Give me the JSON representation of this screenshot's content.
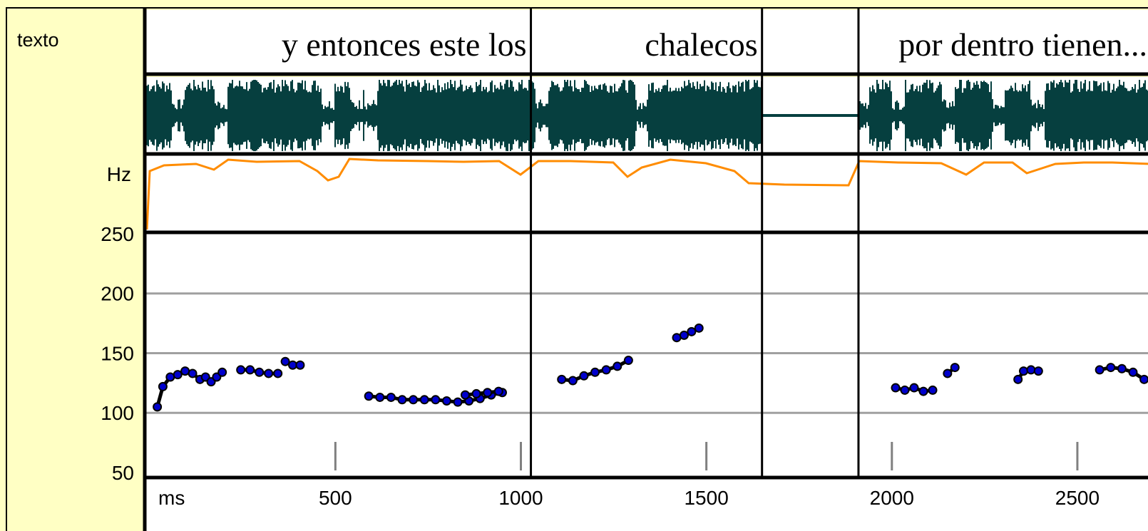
{
  "chart_data": {
    "type": "scatter",
    "title": "",
    "tier_label": "texto",
    "pitch_label": "Hz",
    "xlabel": "ms",
    "xlim": [
      -10,
      2700
    ],
    "ylim": [
      47,
      250
    ],
    "x_ticks": [
      500,
      1000,
      1500,
      2000,
      2500
    ],
    "y_ticks": [
      50,
      100,
      150,
      200,
      250
    ],
    "grid_y": [
      100,
      150,
      200
    ],
    "minor_x_ticks": [
      500,
      1000,
      1500,
      2000,
      2500
    ],
    "segment_boundaries_ms": [
      1027,
      1650,
      1910
    ],
    "words": [
      {
        "text": "y entonces este los",
        "start": -10,
        "end": 1027
      },
      {
        "text": "chalecos",
        "start": 1027,
        "end": 1650
      },
      {
        "text": "por dentro tienen...",
        "start": 1910,
        "end": 2700
      }
    ],
    "colors": {
      "background": "#ffffc4",
      "waveform": "#063f3f",
      "pitch_contour": "#ff8c00",
      "points": "#0000cc"
    },
    "series": [
      {
        "x": [
          20,
          35,
          55,
          75,
          95,
          115,
          135,
          150,
          165,
          180,
          195
        ],
        "y": [
          105,
          122,
          130,
          132,
          135,
          133,
          128,
          130,
          126,
          130,
          134
        ]
      },
      {
        "x": [
          245,
          270,
          295,
          320,
          345
        ],
        "y": [
          136,
          136,
          134,
          133,
          133
        ]
      },
      {
        "x": [
          365,
          385,
          405
        ],
        "y": [
          143,
          140,
          140
        ]
      },
      {
        "x": [
          590,
          620,
          650,
          680,
          710,
          740,
          770,
          800,
          830,
          860,
          890,
          920,
          950
        ],
        "y": [
          114,
          113,
          113,
          111,
          111,
          111,
          111,
          110,
          109,
          110,
          112,
          115,
          117
        ]
      },
      {
        "x": [
          850,
          880,
          910,
          940
        ],
        "y": [
          115,
          116,
          117,
          118
        ]
      },
      {
        "x": [
          1110,
          1140,
          1170,
          1200,
          1230,
          1260,
          1290
        ],
        "y": [
          128,
          127,
          131,
          134,
          136,
          139,
          144
        ]
      },
      {
        "x": [
          1420,
          1440,
          1460,
          1480
        ],
        "y": [
          163,
          165,
          168,
          171
        ]
      },
      {
        "x": [
          2010,
          2035,
          2060,
          2085,
          2110
        ],
        "y": [
          121,
          119,
          121,
          118,
          119
        ]
      },
      {
        "x": [
          2150,
          2170
        ],
        "y": [
          133,
          138
        ]
      },
      {
        "x": [
          2340,
          2355,
          2375,
          2395
        ],
        "y": [
          128,
          135,
          136,
          135
        ]
      },
      {
        "x": [
          2560,
          2590,
          2620,
          2650,
          2680
        ],
        "y": [
          136,
          138,
          137,
          134,
          128
        ]
      }
    ]
  }
}
